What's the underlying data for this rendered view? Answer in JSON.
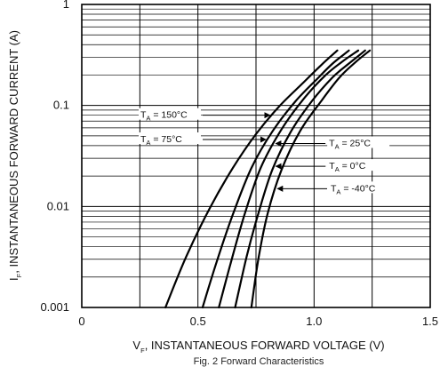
{
  "chart_data": {
    "type": "line",
    "title": "",
    "caption": "Fig. 2  Forward Characteristics",
    "xlabel_main": "V",
    "xlabel_sub": "F",
    "xlabel_rest": ", INSTANTANEOUS FORWARD VOLTAGE (V)",
    "ylabel_main": "I",
    "ylabel_sub": "F",
    "ylabel_rest": ", INSTANTANEOUS FORWARD CURRENT (A)",
    "xlim": [
      0,
      1.5
    ],
    "ylim": [
      0.001,
      1
    ],
    "yscale": "log",
    "grid": true,
    "x_ticks": [
      0,
      0.5,
      1.0,
      1.5
    ],
    "x_tick_labels": [
      "0",
      "0.5",
      "1.0",
      "1.5"
    ],
    "y_ticks": [
      0.001,
      0.01,
      0.1,
      1
    ],
    "y_tick_labels": [
      "0.001",
      "0.01",
      "0.1",
      "1"
    ],
    "series": [
      {
        "label": "150°C",
        "x": [
          0.36,
          0.45,
          0.55,
          0.65,
          0.75,
          0.85,
          0.95,
          1.03,
          1.1
        ],
        "y": [
          0.001,
          0.0032,
          0.0095,
          0.024,
          0.052,
          0.098,
          0.165,
          0.25,
          0.35
        ]
      },
      {
        "label": "75°C",
        "x": [
          0.52,
          0.58,
          0.65,
          0.73,
          0.82,
          0.92,
          1.02,
          1.08,
          1.15
        ],
        "y": [
          0.001,
          0.0028,
          0.0083,
          0.024,
          0.055,
          0.11,
          0.19,
          0.26,
          0.35
        ]
      },
      {
        "label": "25°C",
        "x": [
          0.59,
          0.64,
          0.7,
          0.77,
          0.86,
          0.96,
          1.05,
          1.12,
          1.19
        ],
        "y": [
          0.001,
          0.0027,
          0.0082,
          0.024,
          0.058,
          0.12,
          0.2,
          0.27,
          0.35
        ]
      },
      {
        "label": "0°C",
        "x": [
          0.66,
          0.71,
          0.76,
          0.82,
          0.9,
          0.99,
          1.08,
          1.15,
          1.22
        ],
        "y": [
          0.001,
          0.0032,
          0.0085,
          0.023,
          0.055,
          0.11,
          0.19,
          0.26,
          0.35
        ]
      },
      {
        "label": "-40°C",
        "x": [
          0.73,
          0.76,
          0.8,
          0.86,
          0.94,
          1.03,
          1.11,
          1.18,
          1.24
        ],
        "y": [
          0.001,
          0.003,
          0.0085,
          0.023,
          0.056,
          0.11,
          0.19,
          0.27,
          0.35
        ]
      }
    ],
    "annotations": [
      {
        "text_main": "T",
        "text_sub": "A",
        "text_rest": " = 150°C",
        "series": 0,
        "side": "left",
        "at_y": 0.08
      },
      {
        "text_main": "T",
        "text_sub": "A",
        "text_rest": " = 75°C",
        "series": 1,
        "side": "left",
        "at_y": 0.046
      },
      {
        "text_main": "T",
        "text_sub": "A",
        "text_rest": " = 25°C",
        "series": 2,
        "side": "right",
        "at_y": 0.042
      },
      {
        "text_main": "T",
        "text_sub": "A",
        "text_rest": " = 0°C",
        "series": 3,
        "side": "right",
        "at_y": 0.025
      },
      {
        "text_main": "T",
        "text_sub": "A",
        "text_rest": " = -40°C",
        "series": 4,
        "side": "right",
        "at_y": 0.015
      }
    ]
  }
}
